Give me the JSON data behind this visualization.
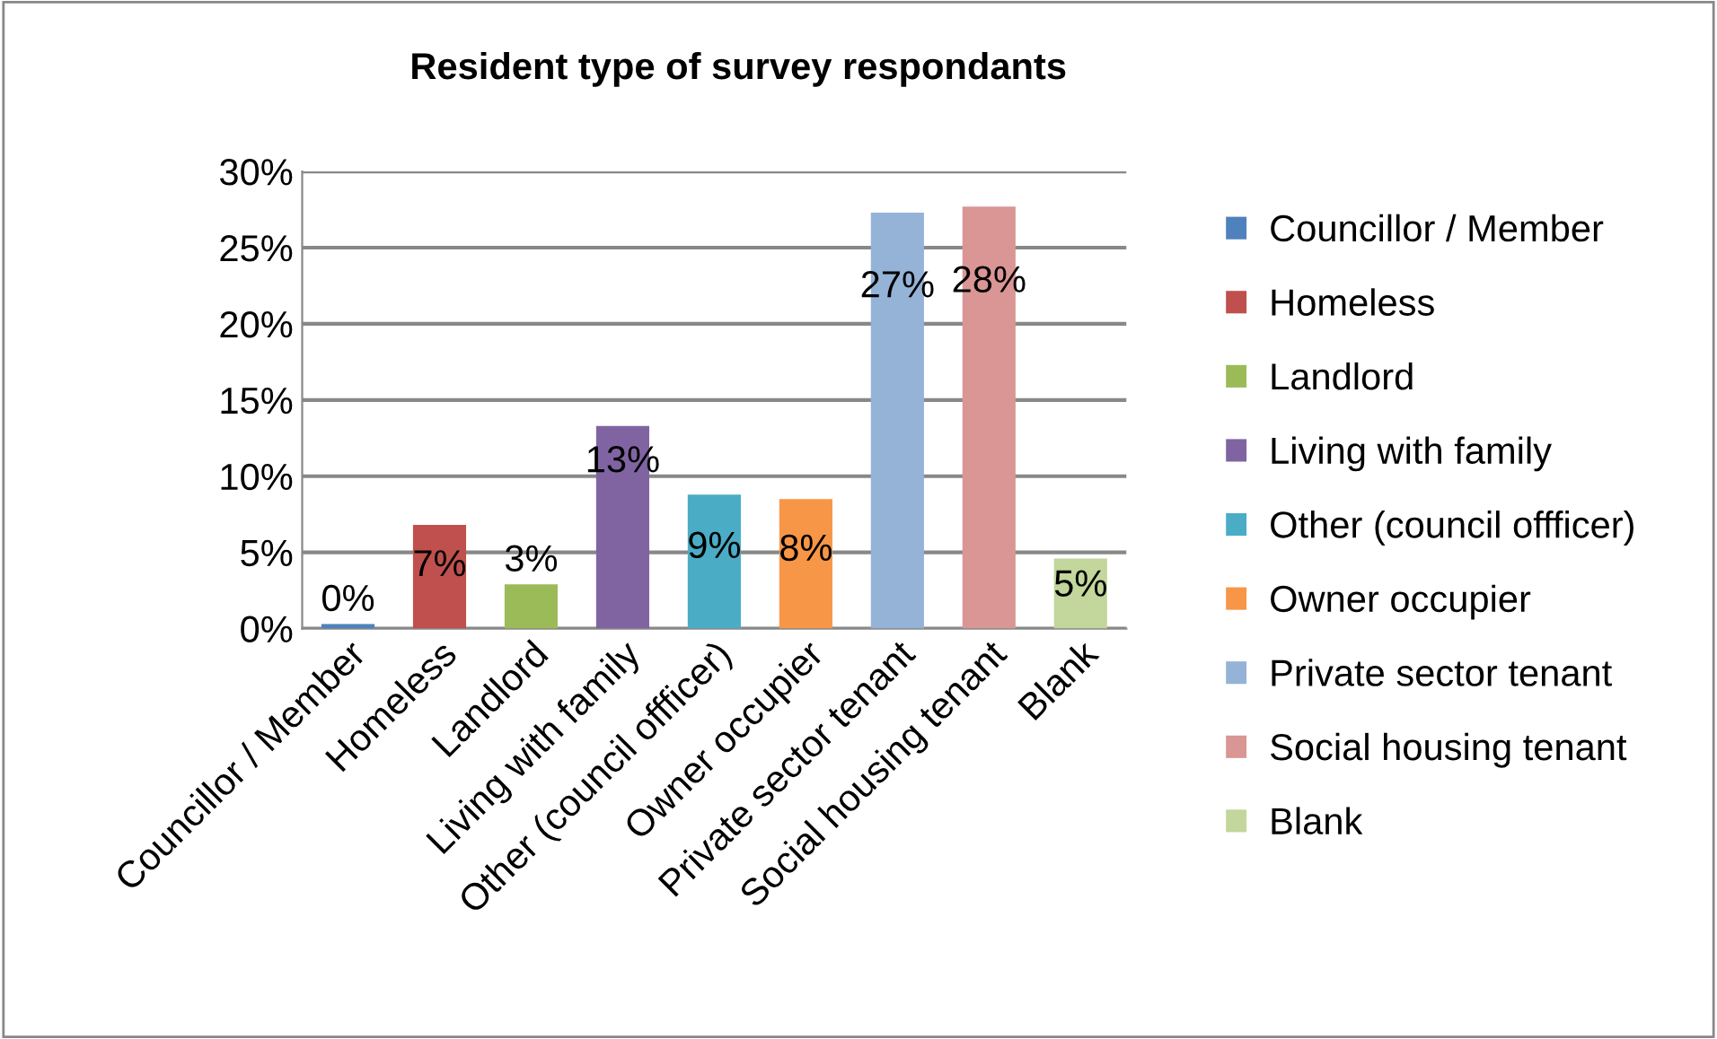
{
  "chart_data": {
    "type": "bar",
    "title": "Resident type of survey respondants",
    "categories": [
      "Councillor / Member",
      "Homeless",
      "Landlord",
      "Living with family",
      "Other (council offficer)",
      "Owner occupier",
      "Private sector tenant",
      "Social housing tenant",
      "Blank"
    ],
    "series": [
      {
        "name": "Councillor / Member",
        "color": "#4f81bd",
        "values": [
          0.3,
          null,
          null,
          null,
          null,
          null,
          null,
          null,
          null
        ],
        "value_labels": [
          "0%",
          null,
          null,
          null,
          null,
          null,
          null,
          null,
          null
        ]
      },
      {
        "name": "Homeless",
        "color": "#c0504d",
        "values": [
          null,
          6.8,
          null,
          null,
          null,
          null,
          null,
          null,
          null
        ],
        "value_labels": [
          null,
          "7%",
          null,
          null,
          null,
          null,
          null,
          null,
          null
        ]
      },
      {
        "name": "Landlord",
        "color": "#9bbb59",
        "values": [
          null,
          null,
          2.9,
          null,
          null,
          null,
          null,
          null,
          null
        ],
        "value_labels": [
          null,
          null,
          "3%",
          null,
          null,
          null,
          null,
          null,
          null
        ]
      },
      {
        "name": "Living with family",
        "color": "#8064a2",
        "values": [
          null,
          null,
          null,
          13.3,
          null,
          null,
          null,
          null,
          null
        ],
        "value_labels": [
          null,
          null,
          null,
          "13%",
          null,
          null,
          null,
          null,
          null
        ]
      },
      {
        "name": "Other (council offficer)",
        "color": "#4bacc6",
        "values": [
          null,
          null,
          null,
          null,
          8.8,
          null,
          null,
          null,
          null
        ],
        "value_labels": [
          null,
          null,
          null,
          null,
          "9%",
          null,
          null,
          null,
          null
        ]
      },
      {
        "name": "Owner occupier",
        "color": "#f79646",
        "values": [
          null,
          null,
          null,
          null,
          null,
          8.5,
          null,
          null,
          null
        ],
        "value_labels": [
          null,
          null,
          null,
          null,
          null,
          "8%",
          null,
          null,
          null
        ]
      },
      {
        "name": "Private sector tenant",
        "color": "#95b3d7",
        "values": [
          null,
          null,
          null,
          null,
          null,
          null,
          27.3,
          null,
          null
        ],
        "value_labels": [
          null,
          null,
          null,
          null,
          null,
          null,
          "27%",
          null,
          null
        ]
      },
      {
        "name": "Social housing tenant",
        "color": "#d99694",
        "values": [
          null,
          null,
          null,
          null,
          null,
          null,
          null,
          27.7,
          null
        ],
        "value_labels": [
          null,
          null,
          null,
          null,
          null,
          null,
          null,
          "28%",
          null
        ]
      },
      {
        "name": "Blank",
        "color": "#c3d69b",
        "values": [
          null,
          null,
          null,
          null,
          null,
          null,
          null,
          null,
          4.6
        ],
        "value_labels": [
          null,
          null,
          null,
          null,
          null,
          null,
          null,
          null,
          "5%"
        ]
      }
    ],
    "ylim": [
      0,
      30
    ],
    "yticks": [
      {
        "value": 0,
        "label": "0%"
      },
      {
        "value": 5,
        "label": "5%"
      },
      {
        "value": 10,
        "label": "10%"
      },
      {
        "value": 15,
        "label": "15%"
      },
      {
        "value": 20,
        "label": "20%"
      },
      {
        "value": 25,
        "label": "25%"
      },
      {
        "value": 30,
        "label": "30%"
      }
    ],
    "grid": "y",
    "legend": "right"
  }
}
